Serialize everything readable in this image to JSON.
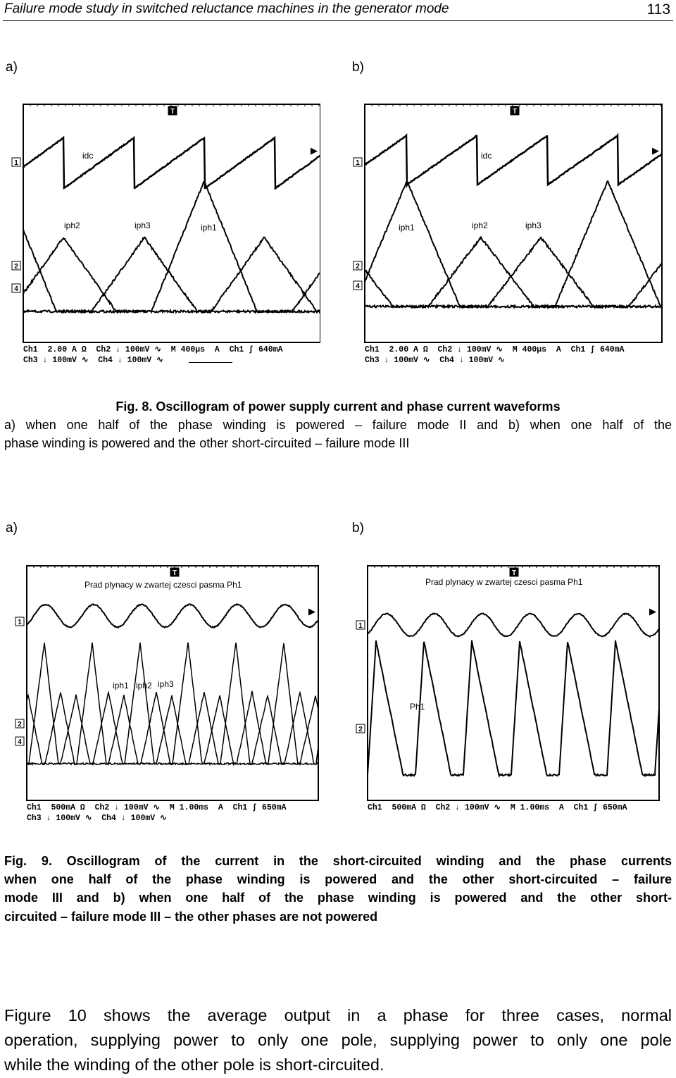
{
  "header": {
    "title": "Failure mode study in switched reluctance machines in the generator mode",
    "page": "113"
  },
  "fig8": {
    "labels": [
      "a)",
      "b)"
    ],
    "scopes": [
      {
        "markers": [
          "T",
          "1",
          "2",
          "4"
        ],
        "traces": [
          "idc",
          "iph2",
          "iph3",
          "iph1"
        ],
        "status": [
          "Ch1  2.00 A Ω  Ch2 ↓ 100mV ∿  M 400µs  A  Ch1 ∫ 640mA",
          "Ch3 ↓ 100mV ∿  Ch4 ↓ 100mV ∿"
        ]
      },
      {
        "markers": [
          "T",
          "1",
          "2",
          "4"
        ],
        "traces": [
          "idc",
          "iph1",
          "iph2",
          "iph3"
        ],
        "status": [
          "Ch1  2.00 A Ω  Ch2 ↓ 100mV ∿  M 400µs  A  Ch1 ∫ 640mA",
          "Ch3 ↓ 100mV ∿  Ch4 ↓ 100mV ∿"
        ]
      }
    ],
    "caption": [
      "Fig. 8. Oscillogram of power supply current and phase current waveforms",
      "a) when one half of the phase winding is powered – failure mode II and b) when one half of the",
      "phase winding is powered and the other short-circuited – failure mode III"
    ]
  },
  "fig9": {
    "labels": [
      "a)",
      "b)"
    ],
    "scopes": [
      {
        "markers": [
          "T",
          "1",
          "2",
          "4"
        ],
        "traces": [
          "Prad plynacy w zwartej czesci pasma Ph1",
          "iph1",
          "iph2",
          "iph3"
        ],
        "status": [
          "Ch1  500mA Ω  Ch2 ↓ 100mV ∿  M 1.00ms  A  Ch1 ∫ 650mA",
          "Ch3 ↓ 100mV ∿  Ch4 ↓ 100mV ∿"
        ]
      },
      {
        "markers": [
          "T",
          "1",
          "2"
        ],
        "traces": [
          "Prad plynacy w zwartej czesci pasma Ph1",
          "Ph1"
        ],
        "status": [
          "Ch1  500mA Ω  Ch2 ↓ 100mV ∿  M 1.00ms  A  Ch1 ∫ 650mA"
        ]
      }
    ],
    "caption": [
      "Fig. 9. Oscillogram of the current in the short-circuited winding and the phase currents",
      "when one half of the phase winding is powered and the other short-circuited – failure",
      "mode III and b) when one half of the phase winding is powered and the other short-",
      "circuited – failure mode III – the other phases are not powered"
    ]
  },
  "body": [
    "Figure 10 shows the average output in a phase for three cases, normal",
    "operation, supplying power to only one pole, supplying power to only one pole",
    "while the winding of the other pole is short-circuited."
  ]
}
